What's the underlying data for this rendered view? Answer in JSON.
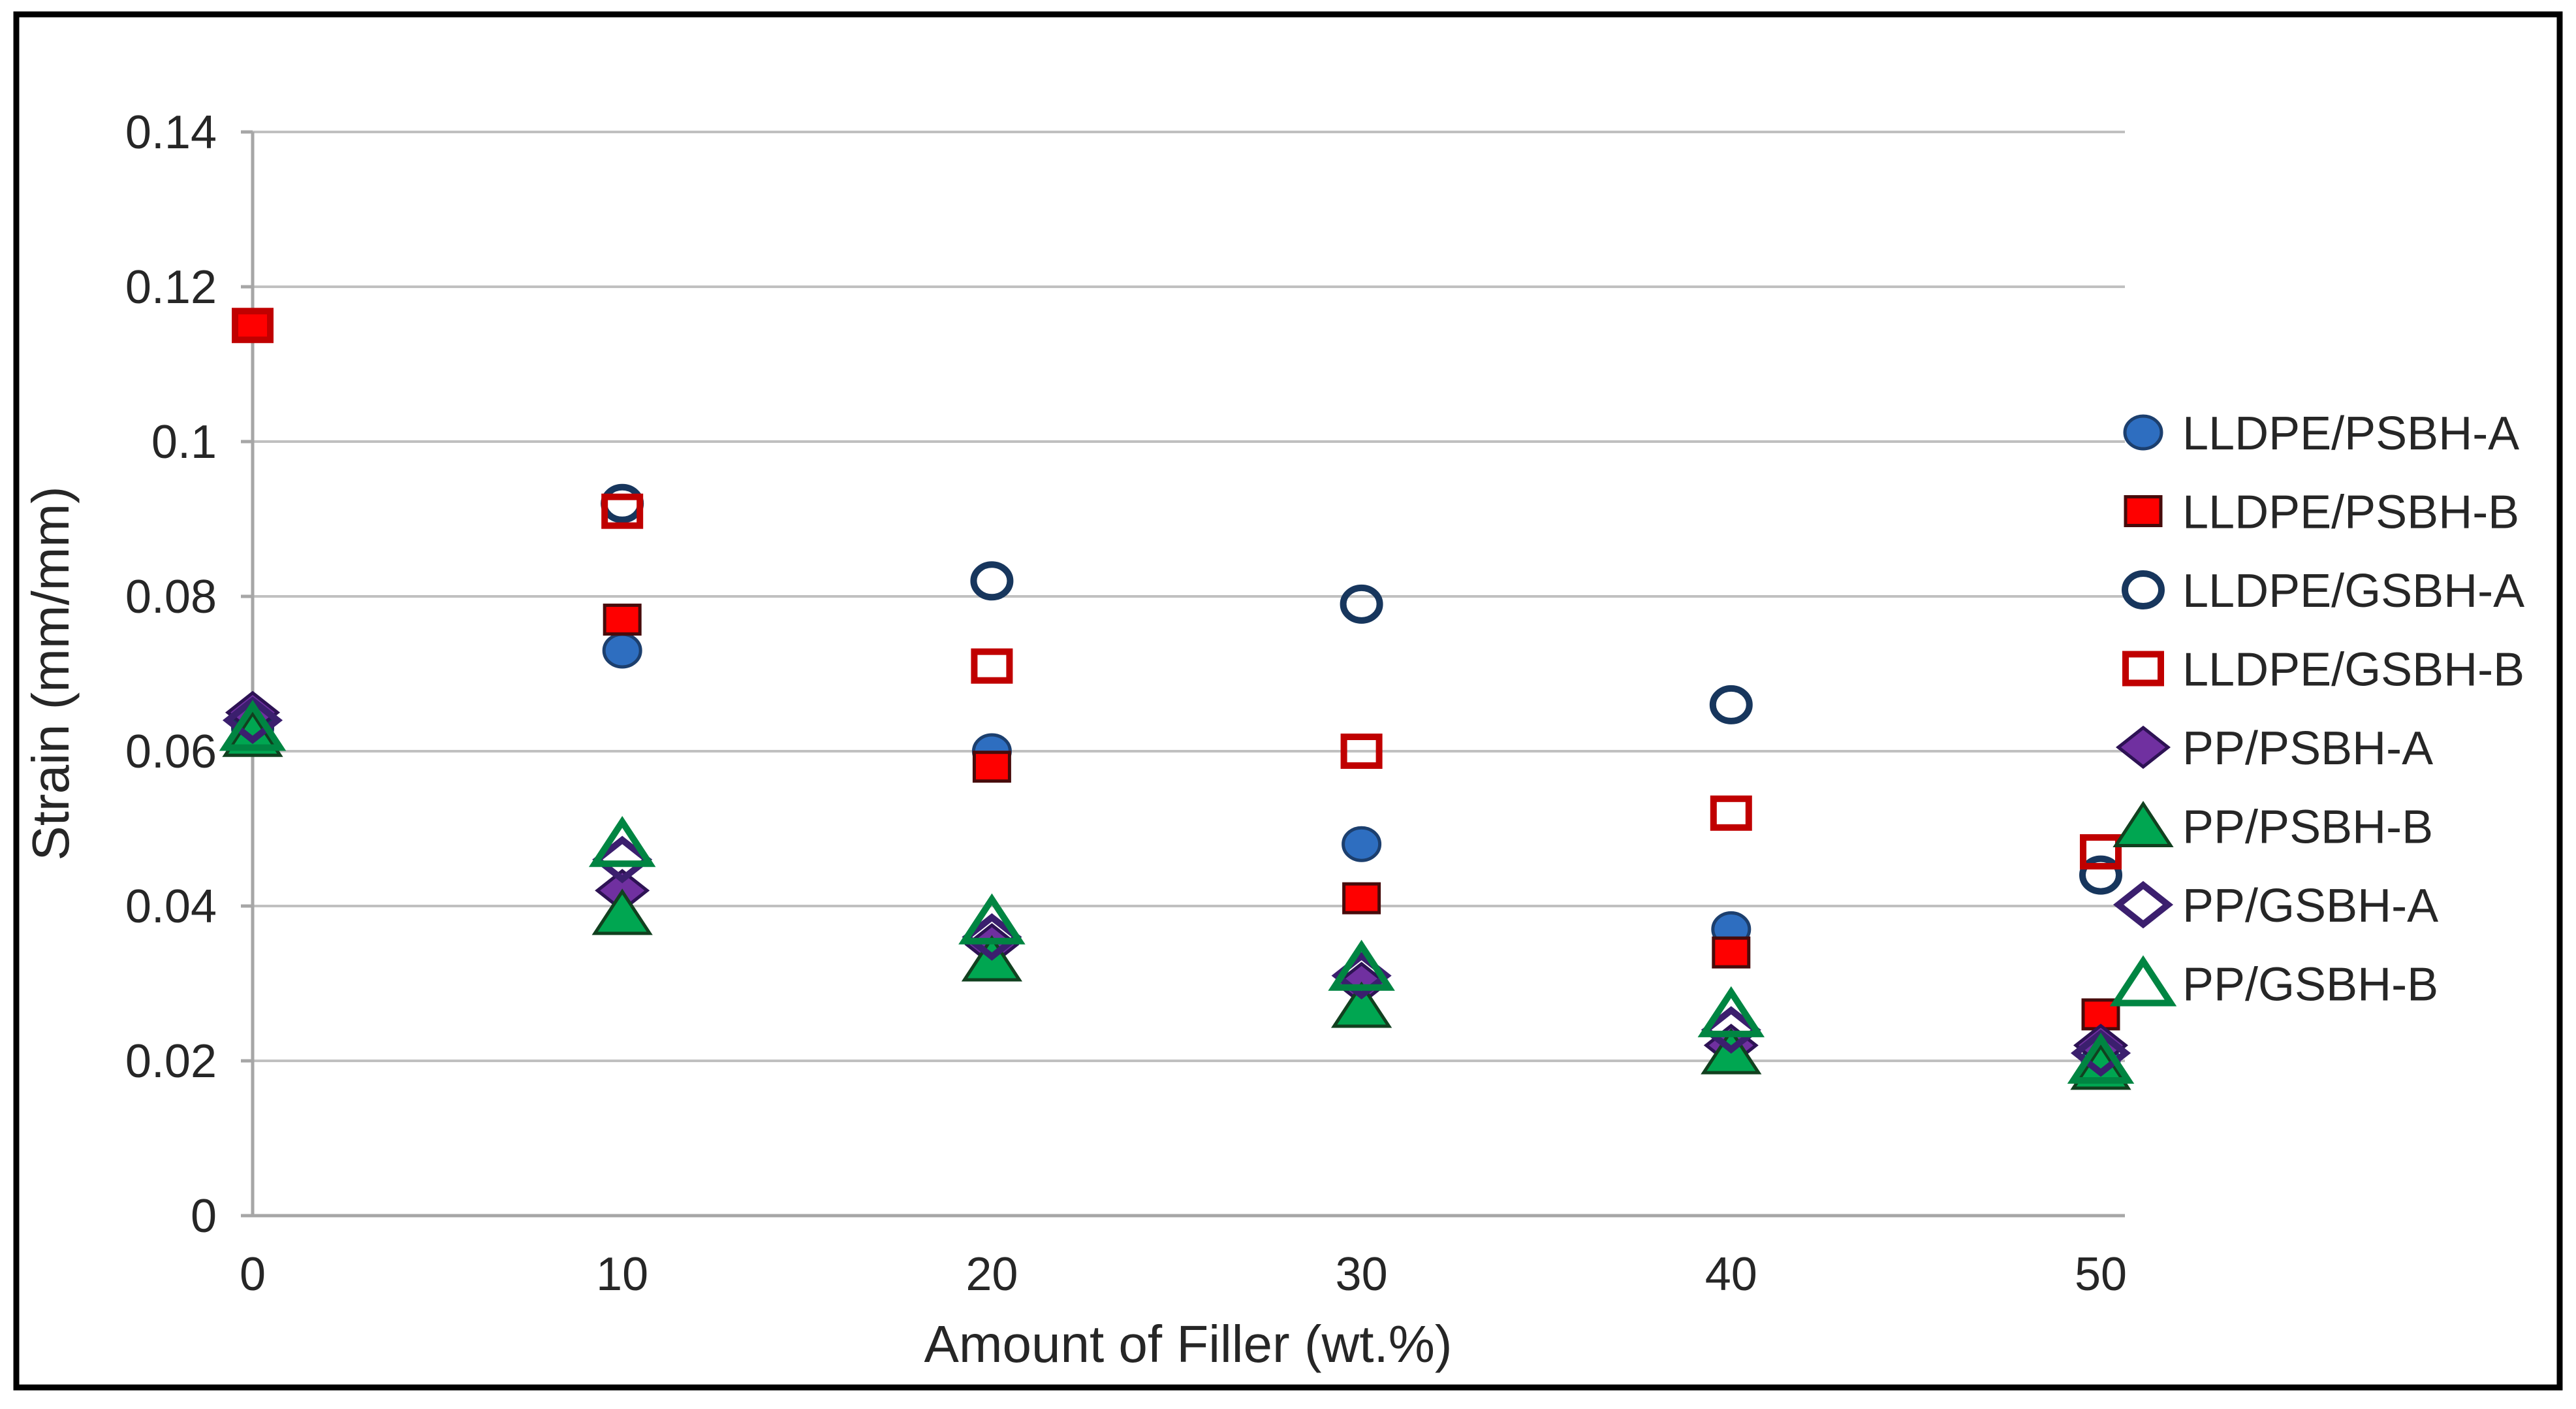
{
  "chart_data": {
    "type": "scatter",
    "title": "",
    "xlabel": "Amount of Filler (wt.%)",
    "ylabel": "Strain (mm/mm)",
    "x": [
      0,
      10,
      20,
      30,
      40,
      50
    ],
    "x_tick_labels": [
      "0",
      "10",
      "20",
      "30",
      "40",
      "50"
    ],
    "y_tick_labels": [
      "0.14",
      "0.12",
      "0.1",
      "0.08",
      "0.06",
      "0.04",
      "0.02",
      "0"
    ],
    "y_tick_values": [
      0.14,
      0.12,
      0.1,
      0.08,
      0.06,
      0.04,
      0.02,
      0
    ],
    "xlim": [
      0,
      52
    ],
    "ylim": [
      0,
      0.14
    ],
    "grid": true,
    "legend_position": "right",
    "colors": {
      "frame": "#000000",
      "grid": "#c0c0c0",
      "axis": "#a6a6a6",
      "text": "#262626"
    },
    "series": [
      {
        "name": "LLDPE/PSBH-A",
        "marker": "circle",
        "style": "solid",
        "color": "#2e6ec0",
        "edge": "#1c3f6e",
        "values": [
          0.063,
          0.073,
          0.06,
          0.048,
          0.037,
          0.02
        ]
      },
      {
        "name": "LLDPE/PSBH-B",
        "marker": "square",
        "style": "solid",
        "color": "#fe0000",
        "edge": "#470b0b",
        "values": [
          0.115,
          0.077,
          0.058,
          0.041,
          0.034,
          0.026
        ]
      },
      {
        "name": "LLDPE/GSBH-A",
        "marker": "circle",
        "style": "open",
        "color": "#17365d",
        "edge": "#17365d",
        "values": [
          0.063,
          0.092,
          0.082,
          0.079,
          0.066,
          0.044
        ]
      },
      {
        "name": "LLDPE/GSBH-B",
        "marker": "square",
        "style": "open",
        "color": "#c00000",
        "edge": "#c00000",
        "values": [
          0.115,
          0.091,
          0.071,
          0.06,
          0.052,
          0.047
        ]
      },
      {
        "name": "PP/PSBH-A",
        "marker": "diamond",
        "style": "solid",
        "color": "#7030a0",
        "edge": "#2d1254",
        "values": [
          0.065,
          0.042,
          0.035,
          0.03,
          0.022,
          0.022
        ]
      },
      {
        "name": "PP/PSBH-B",
        "marker": "triangle",
        "style": "solid",
        "color": "#00a651",
        "edge": "#11401f",
        "values": [
          0.062,
          0.039,
          0.033,
          0.027,
          0.021,
          0.019
        ]
      },
      {
        "name": "PP/GSBH-A",
        "marker": "diamond",
        "style": "open",
        "color": "#3b1f6e",
        "edge": "#3b1f6e",
        "values": [
          0.064,
          0.046,
          0.036,
          0.031,
          0.024,
          0.021
        ]
      },
      {
        "name": "PP/GSBH-B",
        "marker": "triangle",
        "style": "open",
        "color": "#008542",
        "edge": "#008542",
        "values": [
          0.063,
          0.048,
          0.038,
          0.032,
          0.026,
          0.02
        ]
      }
    ]
  }
}
